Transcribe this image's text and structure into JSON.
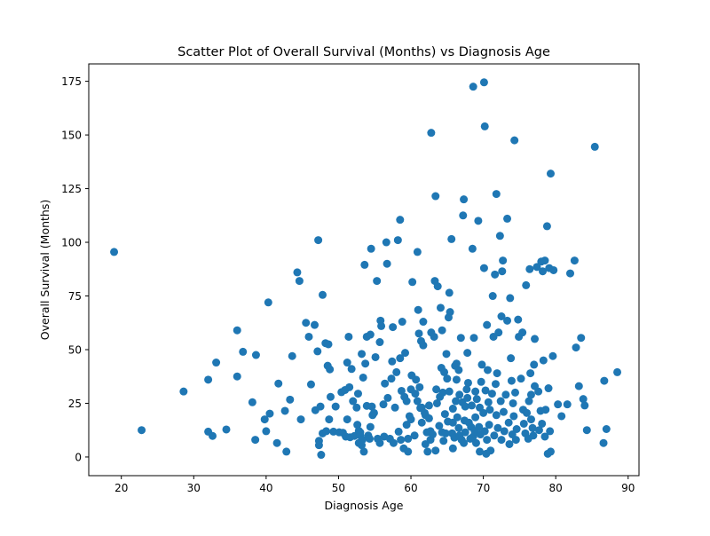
{
  "chart_data": {
    "type": "scatter",
    "title": "Scatter Plot of Overall Survival (Months) vs Diagnosis Age",
    "xlabel": "Diagnosis Age",
    "ylabel": "Overall Survival (Months)",
    "xlim": [
      15.5,
      91.5
    ],
    "ylim": [
      -8.7,
      183.1
    ],
    "xticks": [
      20,
      30,
      40,
      50,
      60,
      70,
      80,
      90
    ],
    "yticks": [
      0,
      25,
      50,
      75,
      100,
      125,
      150,
      175
    ],
    "grid": false,
    "legend": "none",
    "marker_color": "#1f77b4",
    "points": [
      [
        19,
        95.5
      ],
      [
        22.8,
        12.5
      ],
      [
        28.6,
        30.5
      ],
      [
        32,
        11.8
      ],
      [
        32,
        36
      ],
      [
        32.6,
        9.8
      ],
      [
        33.1,
        44
      ],
      [
        34.5,
        12.8
      ],
      [
        36,
        59
      ],
      [
        36,
        37.5
      ],
      [
        36.8,
        49
      ],
      [
        38.1,
        25.5
      ],
      [
        38.5,
        8
      ],
      [
        38.6,
        47.5
      ],
      [
        39.8,
        17.5
      ],
      [
        40,
        12
      ],
      [
        40.3,
        72
      ],
      [
        40.5,
        20.2
      ],
      [
        41.5,
        6.5
      ],
      [
        41.7,
        34.2
      ],
      [
        42.6,
        21.5
      ],
      [
        42.8,
        2.5
      ],
      [
        43.3,
        26.7
      ],
      [
        43.6,
        47
      ],
      [
        44.3,
        86
      ],
      [
        44.6,
        82
      ],
      [
        44.8,
        17.5
      ],
      [
        45.5,
        62.5
      ],
      [
        45.9,
        56
      ],
      [
        46.2,
        33.8
      ],
      [
        46.7,
        61.5
      ],
      [
        46.8,
        21.8
      ],
      [
        47.1,
        49.2
      ],
      [
        47.2,
        101
      ],
      [
        47.3,
        7.5
      ],
      [
        47.3,
        5.5
      ],
      [
        47.5,
        23.5
      ],
      [
        47.6,
        1
      ],
      [
        47.8,
        11
      ],
      [
        47.8,
        75.5
      ],
      [
        48.2,
        53
      ],
      [
        48.3,
        12
      ],
      [
        48.5,
        42.5
      ],
      [
        48.6,
        52.5
      ],
      [
        48.7,
        17.5
      ],
      [
        48.8,
        40.8
      ],
      [
        48.9,
        28
      ],
      [
        49.3,
        11.8
      ],
      [
        49.6,
        23.5
      ],
      [
        50.1,
        11.5
      ],
      [
        50.4,
        30.2
      ],
      [
        50.6,
        11.3
      ],
      [
        50.9,
        31.2
      ],
      [
        51,
        9.5
      ],
      [
        51.2,
        17.5
      ],
      [
        51.2,
        44
      ],
      [
        51.4,
        56
      ],
      [
        51.5,
        32.5
      ],
      [
        51.6,
        9.2
      ],
      [
        51.8,
        41
      ],
      [
        52,
        26
      ],
      [
        52.2,
        9.8
      ],
      [
        52.5,
        23
      ],
      [
        52.6,
        15
      ],
      [
        52.7,
        29.5
      ],
      [
        52.8,
        6.5
      ],
      [
        52.8,
        12.2
      ],
      [
        53,
        11.5
      ],
      [
        53,
        10
      ],
      [
        53.2,
        5.5
      ],
      [
        53.2,
        48
      ],
      [
        53.3,
        8
      ],
      [
        53.4,
        37
      ],
      [
        53.5,
        2.5
      ],
      [
        53.6,
        89.5
      ],
      [
        53.7,
        43.5
      ],
      [
        53.9,
        23.8
      ],
      [
        53.9,
        56
      ],
      [
        54.1,
        10
      ],
      [
        54.3,
        8.5
      ],
      [
        54.4,
        14
      ],
      [
        54.4,
        57
      ],
      [
        54.5,
        97
      ],
      [
        54.6,
        23.5
      ],
      [
        54.7,
        19.5
      ],
      [
        54.9,
        20.5
      ],
      [
        55.1,
        46.5
      ],
      [
        55.3,
        82
      ],
      [
        55.4,
        8.5
      ],
      [
        55.7,
        6.5
      ],
      [
        55.7,
        53.5
      ],
      [
        55.8,
        63.5
      ],
      [
        55.9,
        61
      ],
      [
        56.2,
        24.5
      ],
      [
        56.3,
        9.5
      ],
      [
        56.4,
        34.2
      ],
      [
        56.6,
        100
      ],
      [
        56.7,
        90
      ],
      [
        56.8,
        27.5
      ],
      [
        57.1,
        8.5
      ],
      [
        57.3,
        36.5
      ],
      [
        57.4,
        44.5
      ],
      [
        57.5,
        60.5
      ],
      [
        57.6,
        6.5
      ],
      [
        57.8,
        23
      ],
      [
        58,
        39.5
      ],
      [
        58.2,
        101
      ],
      [
        58.3,
        11.8
      ],
      [
        58.5,
        46
      ],
      [
        58.5,
        110.5
      ],
      [
        58.6,
        8
      ],
      [
        58.7,
        30.8
      ],
      [
        58.8,
        63
      ],
      [
        59,
        4
      ],
      [
        59.1,
        28
      ],
      [
        59.2,
        48.5
      ],
      [
        59.4,
        26
      ],
      [
        59.4,
        15
      ],
      [
        59.6,
        8.5
      ],
      [
        59.6,
        2.5
      ],
      [
        59.8,
        19
      ],
      [
        60,
        31.5
      ],
      [
        60,
        17.5
      ],
      [
        60.1,
        38
      ],
      [
        60.2,
        81.5
      ],
      [
        60.5,
        10
      ],
      [
        60.6,
        29.5
      ],
      [
        60.7,
        36
      ],
      [
        60.9,
        26
      ],
      [
        60.9,
        95.5
      ],
      [
        61,
        68.5
      ],
      [
        61.1,
        57.5
      ],
      [
        61.2,
        32.5
      ],
      [
        61.3,
        22.8
      ],
      [
        61.4,
        54
      ],
      [
        61.5,
        23
      ],
      [
        61.5,
        16
      ],
      [
        61.7,
        52
      ],
      [
        61.7,
        63
      ],
      [
        61.9,
        20.5
      ],
      [
        62,
        6
      ],
      [
        62,
        19.5
      ],
      [
        62.2,
        11.5
      ],
      [
        62.3,
        2.5
      ],
      [
        62.5,
        18
      ],
      [
        62.5,
        24
      ],
      [
        62.7,
        12
      ],
      [
        62.7,
        8
      ],
      [
        62.8,
        58
      ],
      [
        62.8,
        151
      ],
      [
        63,
        10.5
      ],
      [
        63.2,
        56
      ],
      [
        63.3,
        82
      ],
      [
        63.4,
        121.5
      ],
      [
        63.4,
        3
      ],
      [
        63.5,
        31.5
      ],
      [
        63.6,
        25
      ],
      [
        63.7,
        79.5
      ],
      [
        63.9,
        14.5
      ],
      [
        64,
        28
      ],
      [
        64.1,
        69.5
      ],
      [
        64.2,
        41.5
      ],
      [
        64.3,
        11.5
      ],
      [
        64.3,
        59
      ],
      [
        64.4,
        30
      ],
      [
        64.5,
        7.5
      ],
      [
        64.6,
        39.5
      ],
      [
        64.7,
        20
      ],
      [
        64.8,
        11
      ],
      [
        64.9,
        48
      ],
      [
        65,
        36.5
      ],
      [
        65.1,
        16.5
      ],
      [
        65.2,
        65
      ],
      [
        65.3,
        30.5
      ],
      [
        65.3,
        76.5
      ],
      [
        65.4,
        67.5
      ],
      [
        65.6,
        101.5
      ],
      [
        65.7,
        11
      ],
      [
        65.8,
        22.5
      ],
      [
        65.8,
        4
      ],
      [
        65.8,
        16
      ],
      [
        66,
        9
      ],
      [
        66.1,
        42.5
      ],
      [
        66.2,
        26
      ],
      [
        66.3,
        43.5
      ],
      [
        66.3,
        36
      ],
      [
        66.4,
        18.5
      ],
      [
        66.6,
        40.5
      ],
      [
        66.6,
        13.5
      ],
      [
        66.7,
        10
      ],
      [
        66.7,
        29
      ],
      [
        66.9,
        55.5
      ],
      [
        67,
        8
      ],
      [
        67.1,
        25.5
      ],
      [
        67.2,
        112.5
      ],
      [
        67.3,
        6.5
      ],
      [
        67.3,
        120
      ],
      [
        67.4,
        17
      ],
      [
        67.5,
        23.5
      ],
      [
        67.5,
        11.5
      ],
      [
        67.7,
        31.5
      ],
      [
        67.8,
        27.5
      ],
      [
        67.8,
        48.5
      ],
      [
        67.9,
        34.5
      ],
      [
        68,
        16
      ],
      [
        68.2,
        8.5
      ],
      [
        68.3,
        14
      ],
      [
        68.4,
        24
      ],
      [
        68.5,
        97
      ],
      [
        68.6,
        172.5
      ],
      [
        68.6,
        9.5
      ],
      [
        68.7,
        55.5
      ],
      [
        68.8,
        12
      ],
      [
        68.9,
        18.5
      ],
      [
        68.9,
        30.5
      ],
      [
        69,
        6.5
      ],
      [
        69.1,
        27
      ],
      [
        69.3,
        110
      ],
      [
        69.4,
        14
      ],
      [
        69.5,
        23
      ],
      [
        69.5,
        2.5
      ],
      [
        69.6,
        10.5
      ],
      [
        69.7,
        35
      ],
      [
        69.8,
        43
      ],
      [
        70,
        20.5
      ],
      [
        70.1,
        88
      ],
      [
        70.1,
        174.5
      ],
      [
        70.2,
        154
      ],
      [
        70.2,
        12
      ],
      [
        70.3,
        31
      ],
      [
        70.4,
        1.5
      ],
      [
        70.5,
        61.5
      ],
      [
        70.5,
        8
      ],
      [
        70.6,
        40.5
      ],
      [
        70.7,
        25.5
      ],
      [
        70.8,
        15
      ],
      [
        70.9,
        22
      ],
      [
        71,
        3
      ],
      [
        71.2,
        29.5
      ],
      [
        71.3,
        75
      ],
      [
        71.4,
        56
      ],
      [
        71.5,
        10
      ],
      [
        71.6,
        85
      ],
      [
        71.7,
        34
      ],
      [
        71.8,
        122.5
      ],
      [
        71.8,
        19.5
      ],
      [
        71.9,
        39
      ],
      [
        72,
        13.5
      ],
      [
        72.1,
        58
      ],
      [
        72.3,
        103
      ],
      [
        72.4,
        26
      ],
      [
        72.5,
        65.5
      ],
      [
        72.5,
        8
      ],
      [
        72.6,
        86.5
      ],
      [
        72.7,
        91.5
      ],
      [
        72.8,
        21
      ],
      [
        72.9,
        12
      ],
      [
        73.1,
        29
      ],
      [
        73.3,
        111
      ],
      [
        73.3,
        63.5
      ],
      [
        73.5,
        16
      ],
      [
        73.6,
        6
      ],
      [
        73.7,
        74
      ],
      [
        73.8,
        46
      ],
      [
        73.9,
        35.5
      ],
      [
        74,
        10.5
      ],
      [
        74.1,
        25
      ],
      [
        74.2,
        19
      ],
      [
        74.3,
        147.5
      ],
      [
        74.4,
        30
      ],
      [
        74.5,
        8
      ],
      [
        74.6,
        13
      ],
      [
        74.8,
        64
      ],
      [
        74.9,
        56
      ],
      [
        75.2,
        36.5
      ],
      [
        75.4,
        58
      ],
      [
        75.5,
        22
      ],
      [
        75.6,
        15.5
      ],
      [
        75.8,
        11
      ],
      [
        75.9,
        80
      ],
      [
        76,
        20.5
      ],
      [
        76.2,
        8.5
      ],
      [
        76.3,
        26
      ],
      [
        76.4,
        87.5
      ],
      [
        76.5,
        39
      ],
      [
        76.6,
        17.5
      ],
      [
        76.6,
        29
      ],
      [
        76.8,
        13.5
      ],
      [
        76.9,
        10
      ],
      [
        77,
        43
      ],
      [
        77.1,
        55
      ],
      [
        77.1,
        33
      ],
      [
        77.4,
        88.5
      ],
      [
        77.6,
        30.5
      ],
      [
        77.7,
        12.5
      ],
      [
        77.9,
        21.5
      ],
      [
        78,
        91
      ],
      [
        78.1,
        15.5
      ],
      [
        78.2,
        86.5
      ],
      [
        78.3,
        45
      ],
      [
        78.5,
        91.5
      ],
      [
        78.5,
        9.5
      ],
      [
        78.6,
        22
      ],
      [
        78.8,
        107.5
      ],
      [
        78.9,
        1.5
      ],
      [
        79,
        32
      ],
      [
        79.1,
        88
      ],
      [
        79.2,
        12
      ],
      [
        79.3,
        132
      ],
      [
        79.3,
        2.5
      ],
      [
        79.6,
        47
      ],
      [
        79.7,
        87
      ],
      [
        80.3,
        24.5
      ],
      [
        80.8,
        19
      ],
      [
        81.6,
        24.5
      ],
      [
        82,
        85.5
      ],
      [
        82.6,
        91.5
      ],
      [
        82.8,
        51
      ],
      [
        83.2,
        33
      ],
      [
        83.5,
        55.5
      ],
      [
        83.8,
        27
      ],
      [
        84,
        24
      ],
      [
        84.3,
        12.5
      ],
      [
        85.4,
        144.5
      ],
      [
        86.6,
        6.5
      ],
      [
        86.7,
        35.5
      ],
      [
        87,
        13
      ],
      [
        88.5,
        39.5
      ]
    ]
  }
}
